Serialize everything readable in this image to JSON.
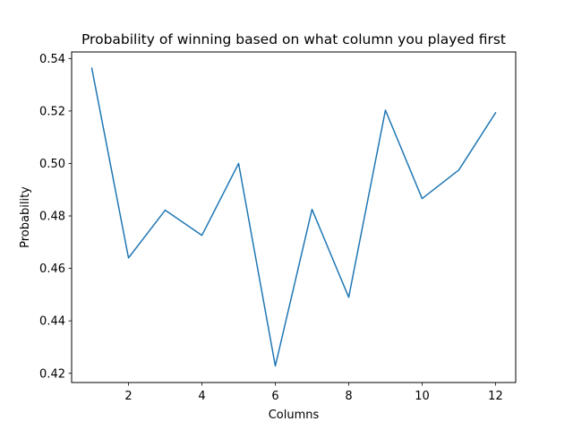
{
  "chart_data": {
    "type": "line",
    "title": "Probability of winning based on what column you played first",
    "xlabel": "Columns",
    "ylabel": "Probability",
    "xlim": [
      0.45,
      12.55
    ],
    "ylim": [
      0.4165,
      0.5425
    ],
    "x_ticks": [
      2,
      4,
      6,
      8,
      10,
      12
    ],
    "x_tick_labels": [
      "2",
      "4",
      "6",
      "8",
      "10",
      "12"
    ],
    "y_ticks": [
      0.42,
      0.44,
      0.46,
      0.48,
      0.5,
      0.52,
      0.54
    ],
    "y_tick_labels": [
      "0.42",
      "0.44",
      "0.46",
      "0.48",
      "0.50",
      "0.52",
      "0.54"
    ],
    "grid": false,
    "series": [
      {
        "color": "#1f77b4",
        "x": [
          1,
          2,
          3,
          4,
          5,
          6,
          7,
          8,
          9,
          10,
          11,
          12
        ],
        "y": [
          0.5363,
          0.464,
          0.4822,
          0.4726,
          0.5,
          0.4228,
          0.4825,
          0.449,
          0.5203,
          0.4866,
          0.4975,
          0.5193
        ]
      }
    ]
  }
}
